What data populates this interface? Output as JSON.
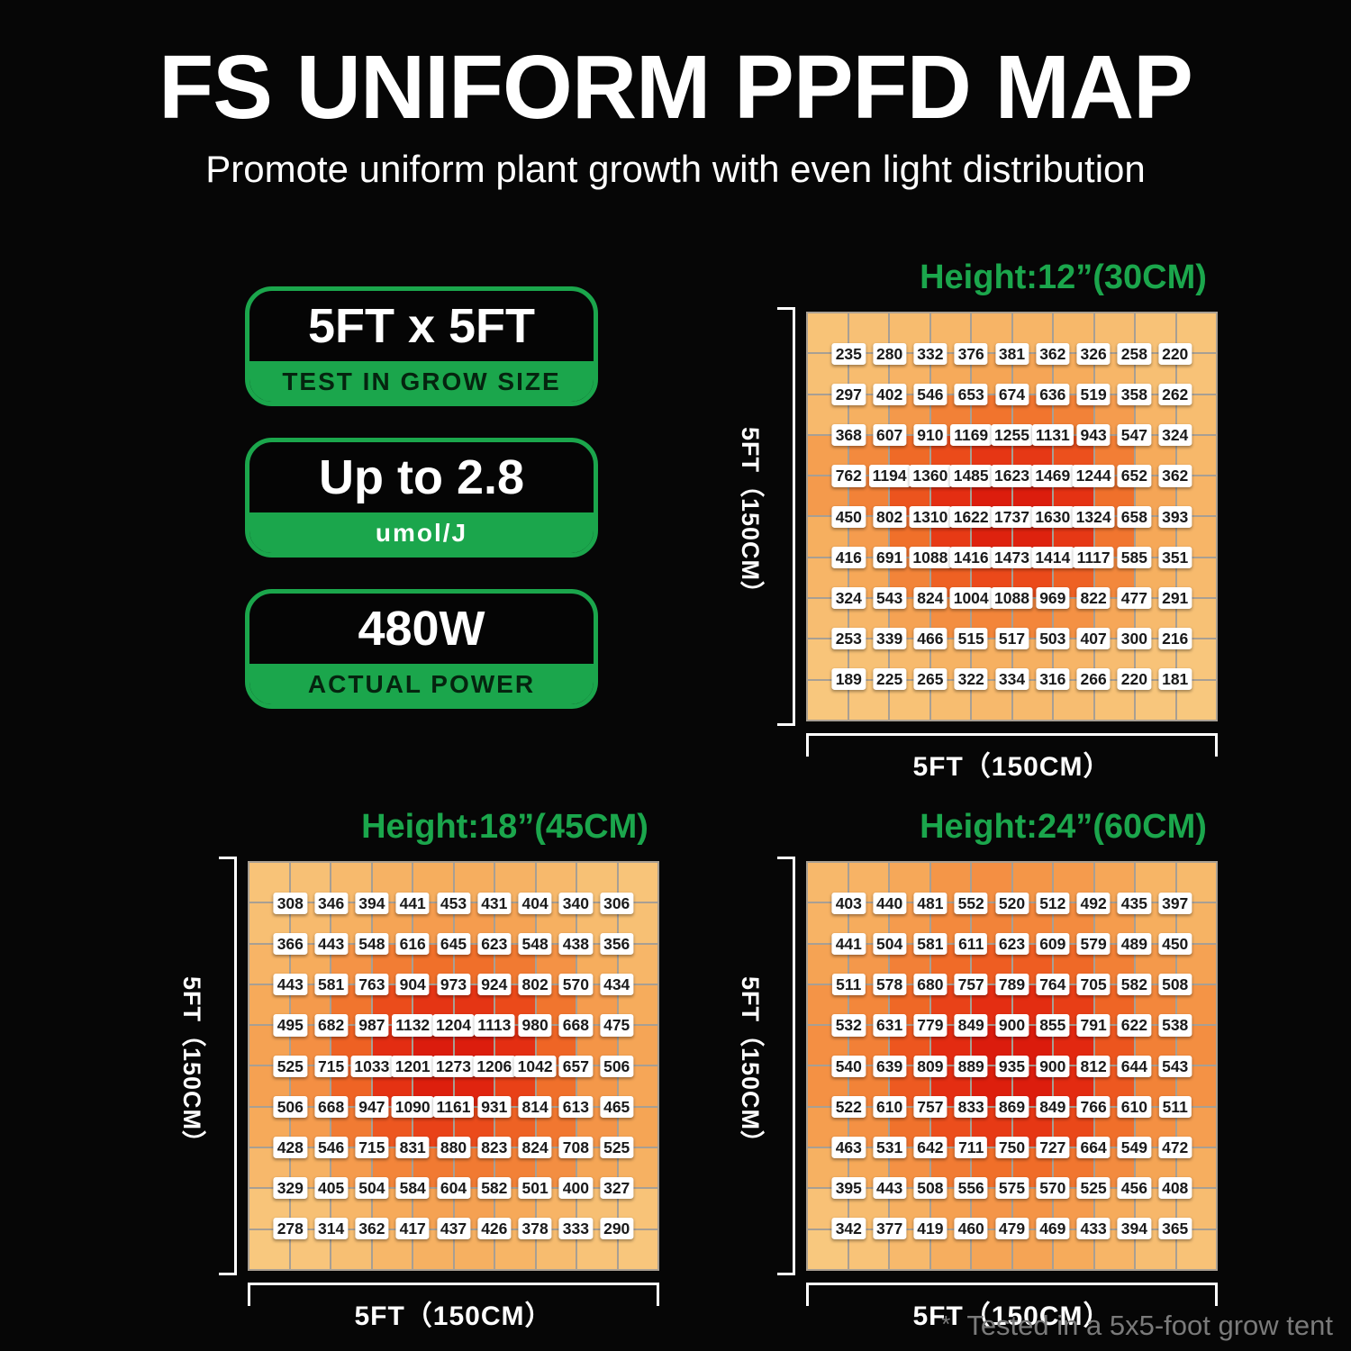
{
  "header": {
    "title": "FS UNIFORM PPFD MAP",
    "subtitle": "Promote uniform plant growth with even light distribution"
  },
  "badges": [
    {
      "main": "5FT x 5FT",
      "sub": "TEST IN GROW SIZE",
      "sub_color": "#05240F"
    },
    {
      "main": "Up to 2.8",
      "sub": "umol/J",
      "sub_color": "#FFFFFF"
    },
    {
      "main": "480W",
      "sub": "ACTUAL POWER",
      "sub_color": "#05240F"
    }
  ],
  "footnote": {
    "marker": "*",
    "text": "Tested in a 5x5-foot grow tent"
  },
  "colors": {
    "background": "#060606",
    "accent_green": "#1BA64C",
    "grid_line": "#A89F93",
    "value_box_bg": "#FFFFFF",
    "value_text": "#1A1A1A",
    "footnote_gray": "#7A7A7A",
    "heat_stops": [
      [
        "0",
        "#F8C87E"
      ],
      [
        "0.18",
        "#F6AC5C"
      ],
      [
        "0.36",
        "#F3893D"
      ],
      [
        "0.52",
        "#F06E29"
      ],
      [
        "0.68",
        "#EB4A1A"
      ],
      [
        "0.84",
        "#E22810"
      ],
      [
        "1",
        "#D6130A"
      ]
    ]
  },
  "chart_data": [
    {
      "type": "heatmap",
      "title": "Height:12”(30CM)",
      "x_axis_label": "5FT（150CM）",
      "y_axis_label": "5FT（150CM）",
      "values": [
        [
          235,
          280,
          332,
          376,
          381,
          362,
          326,
          258,
          220
        ],
        [
          297,
          402,
          546,
          653,
          674,
          636,
          519,
          358,
          262
        ],
        [
          368,
          607,
          910,
          1169,
          1255,
          1131,
          943,
          547,
          324
        ],
        [
          762,
          1194,
          1360,
          1485,
          1623,
          1469,
          1244,
          652,
          362
        ],
        [
          450,
          802,
          1310,
          1622,
          1737,
          1630,
          1324,
          658,
          393
        ],
        [
          416,
          691,
          1088,
          1416,
          1473,
          1414,
          1117,
          585,
          351
        ],
        [
          324,
          543,
          824,
          1004,
          1088,
          969,
          822,
          477,
          291
        ],
        [
          253,
          339,
          466,
          515,
          517,
          503,
          407,
          300,
          216
        ],
        [
          189,
          225,
          265,
          322,
          334,
          316,
          266,
          220,
          181
        ]
      ]
    },
    {
      "type": "heatmap",
      "title": "Height:18”(45CM)",
      "x_axis_label": "5FT（150CM）",
      "y_axis_label": "5FT（150CM）",
      "values": [
        [
          308,
          346,
          394,
          441,
          453,
          431,
          404,
          340,
          306
        ],
        [
          366,
          443,
          548,
          616,
          645,
          623,
          548,
          438,
          356
        ],
        [
          443,
          581,
          763,
          904,
          973,
          924,
          802,
          570,
          434
        ],
        [
          495,
          682,
          987,
          1132,
          1204,
          1113,
          980,
          668,
          475
        ],
        [
          525,
          715,
          1033,
          1201,
          1273,
          1206,
          1042,
          657,
          506
        ],
        [
          506,
          668,
          947,
          1090,
          1161,
          931,
          814,
          613,
          465
        ],
        [
          428,
          546,
          715,
          831,
          880,
          823,
          824,
          708,
          525
        ],
        [
          329,
          405,
          504,
          584,
          604,
          582,
          501,
          400,
          327
        ],
        [
          278,
          314,
          362,
          417,
          437,
          426,
          378,
          333,
          290
        ]
      ]
    },
    {
      "type": "heatmap",
      "title": "Height:24”(60CM)",
      "x_axis_label": "5FT（150CM）",
      "y_axis_label": "5FT（150CM）",
      "values": [
        [
          403,
          440,
          481,
          552,
          520,
          512,
          492,
          435,
          397
        ],
        [
          441,
          504,
          581,
          611,
          623,
          609,
          579,
          489,
          450
        ],
        [
          511,
          578,
          680,
          757,
          789,
          764,
          705,
          582,
          508
        ],
        [
          532,
          631,
          779,
          849,
          900,
          855,
          791,
          622,
          538
        ],
        [
          540,
          639,
          809,
          889,
          935,
          900,
          812,
          644,
          543
        ],
        [
          522,
          610,
          757,
          833,
          869,
          849,
          766,
          610,
          511
        ],
        [
          463,
          531,
          642,
          711,
          750,
          727,
          664,
          549,
          472
        ],
        [
          395,
          443,
          508,
          556,
          575,
          570,
          525,
          456,
          408
        ],
        [
          342,
          377,
          419,
          460,
          479,
          469,
          433,
          394,
          365
        ]
      ]
    }
  ]
}
